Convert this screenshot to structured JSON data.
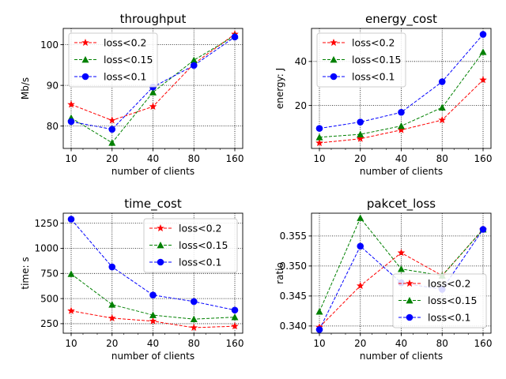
{
  "figure": {
    "background": "#ffffff",
    "colors": {
      "loss<0.2": "#ff0000",
      "loss<0.15": "#008000",
      "loss<0.1": "#0000ff"
    }
  },
  "chart_data": [
    {
      "type": "line",
      "title": "throughput",
      "xlabel": "number of clients",
      "ylabel": "Mb/s",
      "x": [
        10,
        20,
        40,
        80,
        160
      ],
      "xscale": "log2",
      "xticks": [
        "10",
        "20",
        "40",
        "80",
        "160"
      ],
      "ylim": [
        74.5,
        104
      ],
      "yticks": [
        80,
        90,
        100
      ],
      "grid": true,
      "grid_style": "dotted",
      "legend_position": "upper-left",
      "series": [
        {
          "name": "loss<0.2",
          "color": "#ff0000",
          "marker": "star",
          "values": [
            85.3,
            81.4,
            84.8,
            95.3,
            102.6
          ]
        },
        {
          "name": "loss<0.15",
          "color": "#008000",
          "marker": "triangle",
          "values": [
            82.0,
            75.9,
            88.3,
            96.2,
            102.2
          ]
        },
        {
          "name": "loss<0.1",
          "color": "#0000ff",
          "marker": "circle",
          "values": [
            81.1,
            79.2,
            89.6,
            94.9,
            101.9
          ]
        }
      ]
    },
    {
      "type": "line",
      "title": "energy_cost",
      "xlabel": "number of clients",
      "ylabel": "energy: J",
      "x": [
        10,
        20,
        40,
        80,
        160
      ],
      "xscale": "log2",
      "xticks": [
        "10",
        "20",
        "40",
        "80",
        "160"
      ],
      "ylim": [
        0.5,
        55
      ],
      "yticks": [
        20,
        40
      ],
      "grid": true,
      "grid_style": "dotted",
      "legend_position": "upper-left",
      "series": [
        {
          "name": "loss<0.2",
          "color": "#ff0000",
          "marker": "star",
          "values": [
            3.0,
            4.9,
            8.9,
            13.4,
            31.6
          ]
        },
        {
          "name": "loss<0.15",
          "color": "#008000",
          "marker": "triangle",
          "values": [
            5.6,
            6.9,
            10.7,
            19.1,
            44.3
          ]
        },
        {
          "name": "loss<0.1",
          "color": "#0000ff",
          "marker": "circle",
          "values": [
            9.6,
            12.5,
            16.9,
            30.8,
            52.3
          ]
        }
      ]
    },
    {
      "type": "line",
      "title": "time_cost",
      "xlabel": "number of clients",
      "ylabel": "time: s",
      "x": [
        10,
        20,
        40,
        80,
        160
      ],
      "xscale": "log2",
      "xticks": [
        "10",
        "20",
        "40",
        "80",
        "160"
      ],
      "ylim": [
        155,
        1350
      ],
      "yticks": [
        250,
        500,
        750,
        1000,
        1250
      ],
      "grid": true,
      "grid_style": "dotted",
      "legend_position": "upper-right",
      "series": [
        {
          "name": "loss<0.2",
          "color": "#ff0000",
          "marker": "star",
          "values": [
            378,
            305,
            275,
            210,
            225
          ]
        },
        {
          "name": "loss<0.15",
          "color": "#008000",
          "marker": "triangle",
          "values": [
            745,
            440,
            335,
            295,
            315
          ]
        },
        {
          "name": "loss<0.1",
          "color": "#0000ff",
          "marker": "circle",
          "values": [
            1290,
            815,
            535,
            470,
            385
          ]
        }
      ]
    },
    {
      "type": "line",
      "title": "pakcet_loss",
      "xlabel": "number of clients",
      "ylabel": "ratio",
      "x": [
        10,
        20,
        40,
        80,
        160
      ],
      "xscale": "log2",
      "xticks": [
        "10",
        "20",
        "40",
        "80",
        "160"
      ],
      "ylim": [
        0.3388,
        0.3588
      ],
      "yticks": [
        0.34,
        0.345,
        0.35,
        0.355
      ],
      "ytick_labels": [
        "0.340",
        "0.345",
        "0.350",
        "0.355"
      ],
      "grid": true,
      "grid_style": "dotted",
      "legend_position": "lower-right",
      "series": [
        {
          "name": "loss<0.2",
          "color": "#ff0000",
          "marker": "star",
          "values": [
            0.3398,
            0.3467,
            0.3522,
            0.3484,
            0.3561
          ]
        },
        {
          "name": "loss<0.15",
          "color": "#008000",
          "marker": "triangle",
          "values": [
            0.3424,
            0.358,
            0.3495,
            0.3484,
            0.3561
          ]
        },
        {
          "name": "loss<0.1",
          "color": "#0000ff",
          "marker": "circle",
          "values": [
            0.3394,
            0.3533,
            0.3472,
            0.3461,
            0.3561
          ]
        }
      ]
    }
  ]
}
